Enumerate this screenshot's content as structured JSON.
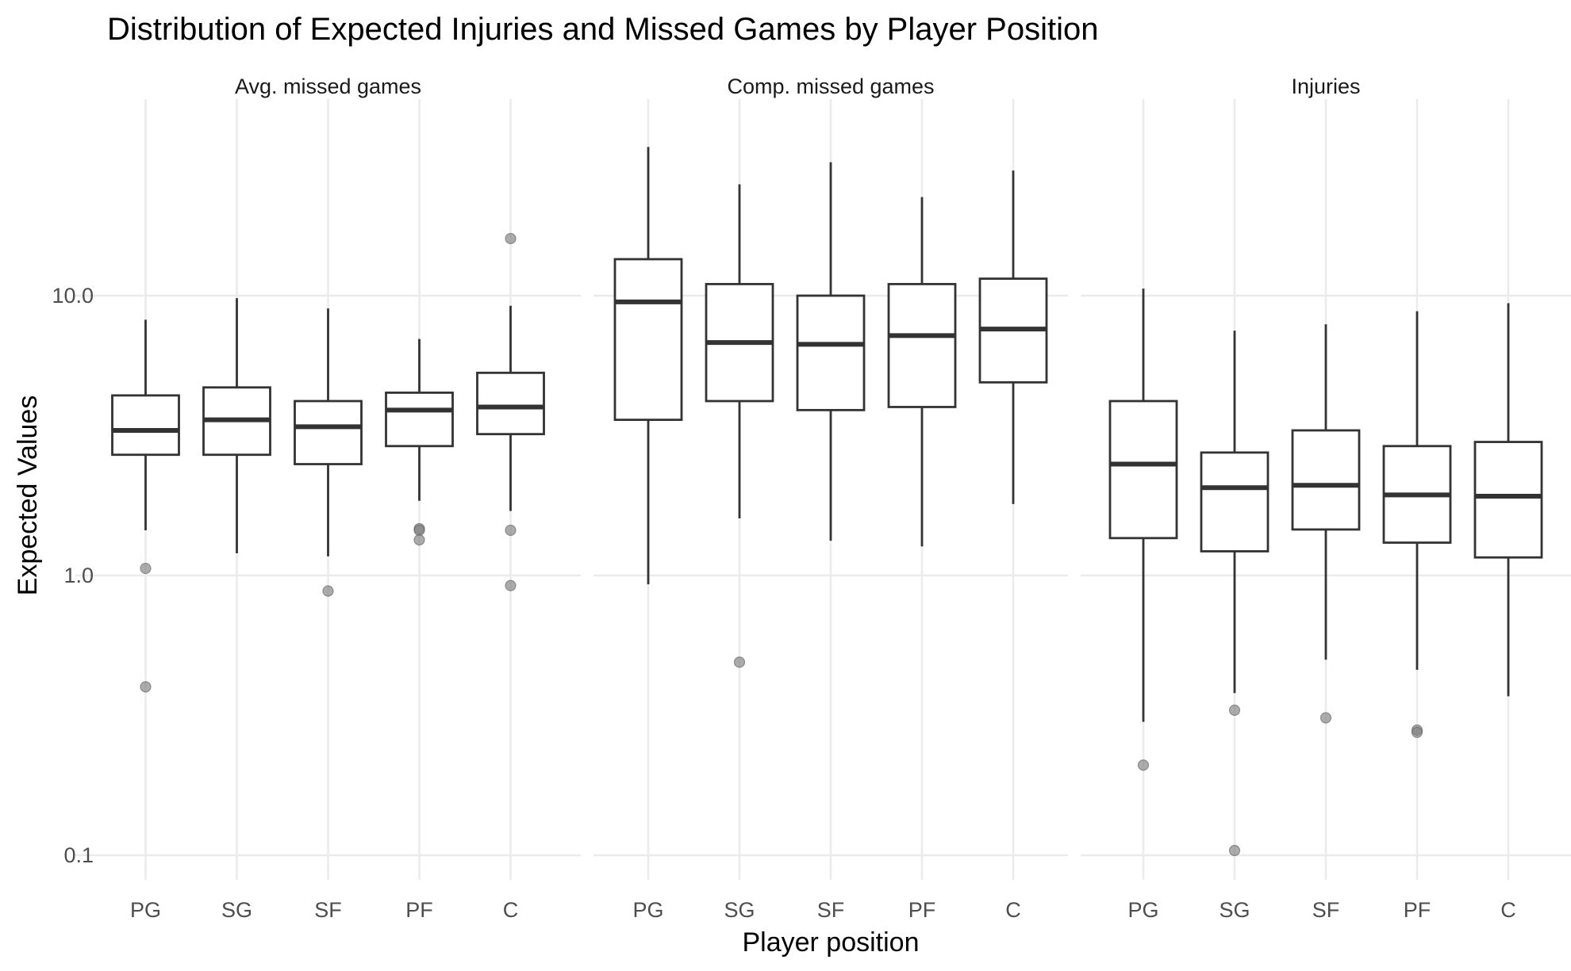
{
  "chart_data": {
    "type": "boxplot",
    "title": "Distribution of Expected Injuries and Missed Games by Player Position",
    "xlabel": "Player position",
    "ylabel": "Expected Values",
    "yscale": "log10",
    "ylim": [
      0.08,
      40
    ],
    "yticks": [
      0.1,
      1.0,
      10.0
    ],
    "ytick_labels": [
      "0.1",
      "1.0",
      "10.0"
    ],
    "categories": [
      "PG",
      "SG",
      "SF",
      "PF",
      "C"
    ],
    "grid": true,
    "colors": {
      "box_fill": "#ffffff",
      "box_stroke": "#333333",
      "outlier": "#7f7f7f",
      "grid": "#ebebeb"
    },
    "facets": [
      {
        "label": "Avg. missed games",
        "boxes": [
          {
            "category": "PG",
            "whisker_low": 1.45,
            "q1": 2.7,
            "median": 3.3,
            "q3": 4.4,
            "whisker_high": 8.2,
            "outliers": [
              1.06,
              0.4
            ]
          },
          {
            "category": "SG",
            "whisker_low": 1.2,
            "q1": 2.7,
            "median": 3.6,
            "q3": 4.7,
            "whisker_high": 9.8,
            "outliers": []
          },
          {
            "category": "SF",
            "whisker_low": 1.17,
            "q1": 2.5,
            "median": 3.4,
            "q3": 4.2,
            "whisker_high": 9.0,
            "outliers": [
              0.88
            ]
          },
          {
            "category": "PF",
            "whisker_low": 1.85,
            "q1": 2.9,
            "median": 3.9,
            "q3": 4.5,
            "whisker_high": 7.0,
            "outliers": [
              1.47,
              1.45,
              1.34
            ]
          },
          {
            "category": "C",
            "whisker_low": 1.7,
            "q1": 3.2,
            "median": 4.0,
            "q3": 5.3,
            "whisker_high": 9.2,
            "outliers": [
              16.0,
              1.45,
              0.92
            ]
          }
        ]
      },
      {
        "label": "Comp. missed games",
        "boxes": [
          {
            "category": "PG",
            "whisker_low": 0.93,
            "q1": 3.6,
            "median": 9.5,
            "q3": 13.5,
            "whisker_high": 34.0,
            "outliers": []
          },
          {
            "category": "SG",
            "whisker_low": 1.6,
            "q1": 4.2,
            "median": 6.8,
            "q3": 11.0,
            "whisker_high": 25.0,
            "outliers": [
              0.49
            ]
          },
          {
            "category": "SF",
            "whisker_low": 1.33,
            "q1": 3.9,
            "median": 6.7,
            "q3": 10.0,
            "whisker_high": 30.0,
            "outliers": []
          },
          {
            "category": "PF",
            "whisker_low": 1.27,
            "q1": 4.0,
            "median": 7.2,
            "q3": 11.0,
            "whisker_high": 22.5,
            "outliers": []
          },
          {
            "category": "C",
            "whisker_low": 1.8,
            "q1": 4.9,
            "median": 7.6,
            "q3": 11.5,
            "whisker_high": 28.0,
            "outliers": []
          }
        ]
      },
      {
        "label": "Injuries",
        "boxes": [
          {
            "category": "PG",
            "whisker_low": 0.3,
            "q1": 1.36,
            "median": 2.5,
            "q3": 4.2,
            "whisker_high": 10.6,
            "outliers": [
              0.21
            ]
          },
          {
            "category": "SG",
            "whisker_low": 0.38,
            "q1": 1.22,
            "median": 2.06,
            "q3": 2.75,
            "whisker_high": 7.5,
            "outliers": [
              0.33,
              0.104
            ]
          },
          {
            "category": "SF",
            "whisker_low": 0.5,
            "q1": 1.46,
            "median": 2.1,
            "q3": 3.3,
            "whisker_high": 7.9,
            "outliers": [
              0.31
            ]
          },
          {
            "category": "PF",
            "whisker_low": 0.46,
            "q1": 1.31,
            "median": 1.94,
            "q3": 2.9,
            "whisker_high": 8.8,
            "outliers": [
              0.28,
              0.275
            ]
          },
          {
            "category": "C",
            "whisker_low": 0.37,
            "q1": 1.16,
            "median": 1.92,
            "q3": 3.0,
            "whisker_high": 9.4,
            "outliers": []
          }
        ]
      }
    ]
  }
}
